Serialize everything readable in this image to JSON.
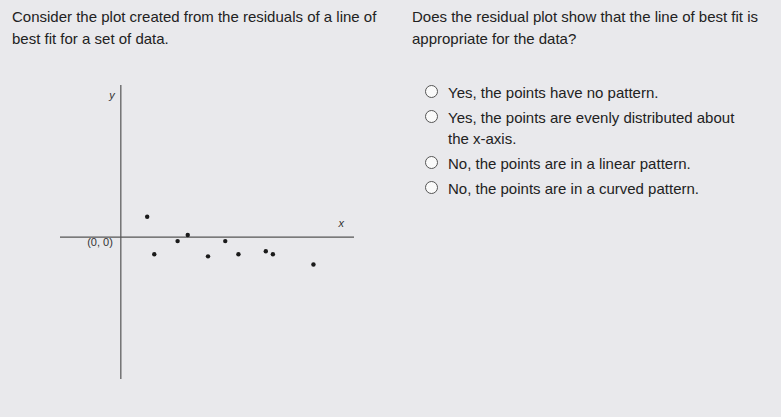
{
  "question": {
    "prompt": "Consider the plot created from the residuals of a line of best fit for a set of data.",
    "text": "Does the residual plot show that the line of best fit is appropriate for the data?"
  },
  "options": [
    "Yes, the points have no pattern.",
    "Yes, the points are evenly distributed about the x-axis.",
    "No, the points are in a linear pattern.",
    "No, the points are in a curved pattern."
  ],
  "chart_data": {
    "type": "scatter",
    "x_label": "x",
    "y_label": "y",
    "annotations": [
      {
        "text": "(0, 0)",
        "x": 0,
        "y": 0
      }
    ],
    "x": [
      1.3,
      1.65,
      2.8,
      3.3,
      4.3,
      5.15,
      5.8,
      7.15,
      7.5,
      9.5
    ],
    "values": [
      1.0,
      -0.85,
      -0.2,
      0.1,
      -0.95,
      -0.2,
      -0.85,
      -0.7,
      -0.85,
      -1.35
    ],
    "xlim": [
      -3,
      11.5
    ],
    "ylim": [
      -7,
      7.5
    ],
    "xticks": [],
    "yticks": [],
    "tick_labels": false,
    "grid": false,
    "color": "#1a1a1a"
  }
}
